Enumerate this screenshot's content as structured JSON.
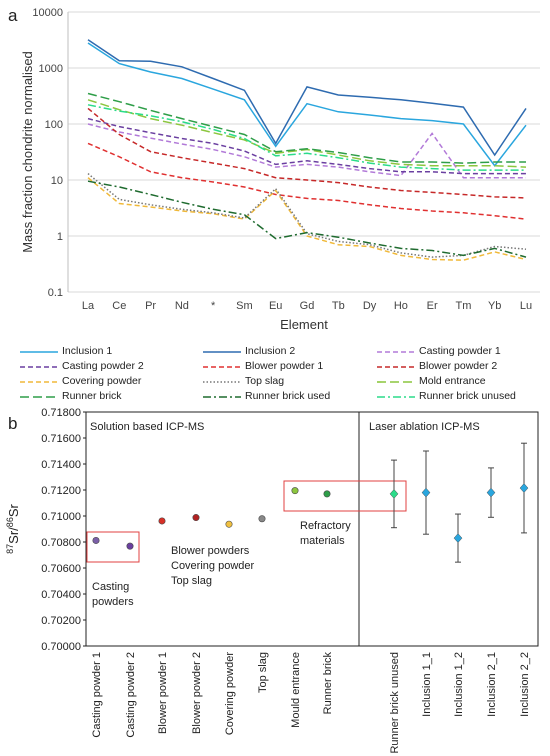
{
  "panels": {
    "a": "a",
    "b": "b"
  },
  "chart_data": [
    {
      "type": "line",
      "ylabel": "Mass fraction chondrite normalised",
      "xlabel": "Element",
      "yscale": "log",
      "ylim": [
        0.1,
        10000
      ],
      "yticks": [
        "0.1",
        "1",
        "10",
        "100",
        "1000",
        "10000"
      ],
      "categories": [
        "La",
        "Ce",
        "Pr",
        "Nd",
        "*",
        "Sm",
        "Eu",
        "Gd",
        "Tb",
        "Dy",
        "Ho",
        "Er",
        "Tm",
        "Yb",
        "Lu"
      ],
      "grid": true,
      "legend": "below",
      "series": [
        {
          "name": "Inclusion 1",
          "color": "#2aa6de",
          "dash": "solid",
          "values": [
            2800,
            1200,
            850,
            650,
            420,
            270,
            40,
            230,
            165,
            145,
            125,
            115,
            100,
            18,
            95
          ]
        },
        {
          "name": "Inclusion 2",
          "color": "#2e6bb0",
          "dash": "solid",
          "values": [
            3200,
            1350,
            1320,
            1050,
            650,
            400,
            45,
            460,
            330,
            300,
            270,
            235,
            200,
            28,
            190
          ]
        },
        {
          "name": "Casting powder 1",
          "color": "#b27ad8",
          "dash": "dash",
          "values": [
            100,
            72,
            56,
            44,
            35,
            26,
            17,
            19,
            17,
            14,
            12,
            68,
            11,
            11,
            11
          ]
        },
        {
          "name": "Casting powder 2",
          "color": "#6a3fa0",
          "dash": "dash",
          "values": [
            125,
            90,
            70,
            55,
            45,
            33,
            19,
            22,
            19,
            16,
            14,
            14,
            13,
            13,
            13
          ]
        },
        {
          "name": "Blower powder 1",
          "color": "#e03030",
          "dash": "dash",
          "values": [
            45,
            26,
            14,
            11,
            9.2,
            7.5,
            5.5,
            4.7,
            4.3,
            3.6,
            3.1,
            2.8,
            2.6,
            2.3,
            2.0
          ]
        },
        {
          "name": "Blower powder 2",
          "color": "#c62828",
          "dash": "dash",
          "values": [
            190,
            65,
            32,
            25,
            20,
            16,
            11,
            10,
            9,
            7.5,
            6.5,
            6,
            5.5,
            5,
            4.8
          ]
        },
        {
          "name": "Covering powder",
          "color": "#f0b93a",
          "dash": "dash",
          "values": [
            11,
            3.8,
            3.3,
            2.8,
            2.5,
            2.0,
            6.5,
            1.0,
            0.7,
            0.65,
            0.45,
            0.38,
            0.37,
            0.52,
            0.38
          ]
        },
        {
          "name": "Top slag",
          "color": "#777777",
          "dash": "dot",
          "values": [
            13,
            4.5,
            3.6,
            3.0,
            2.6,
            2.1,
            7.0,
            1.1,
            0.8,
            0.7,
            0.5,
            0.42,
            0.45,
            0.65,
            0.58
          ]
        },
        {
          "name": "Mold entrance",
          "color": "#8cc63f",
          "dash": "dashlong",
          "values": [
            270,
            180,
            125,
            95,
            70,
            52,
            30,
            35,
            28,
            22,
            19,
            18,
            18,
            18,
            17
          ]
        },
        {
          "name": "Runner brick",
          "color": "#2e9e48",
          "dash": "dashlong",
          "values": [
            350,
            250,
            175,
            125,
            90,
            65,
            32,
            36,
            31,
            25,
            21,
            21,
            20,
            21,
            21
          ]
        },
        {
          "name": "Runner brick used",
          "color": "#1f6b2f",
          "dash": "dashdot",
          "values": [
            9.5,
            7.5,
            5.5,
            4.0,
            3.0,
            2.4,
            0.9,
            1.15,
            0.95,
            0.75,
            0.6,
            0.55,
            0.45,
            0.6,
            0.42
          ]
        },
        {
          "name": "Runner brick unused",
          "color": "#2bdc8a",
          "dash": "dashdot",
          "values": [
            220,
            170,
            140,
            110,
            80,
            55,
            27,
            30,
            25,
            20,
            17,
            16,
            15,
            15,
            15
          ]
        }
      ]
    },
    {
      "type": "scatter",
      "ylabel_main": "87Sr/86Sr",
      "ylabel_sup1": "87",
      "ylabel_sr1": "Sr/",
      "ylabel_sup2": "86",
      "ylabel_sr2": "Sr",
      "ylim": [
        0.7,
        0.718
      ],
      "yticks": [
        "0.70000",
        "0.70200",
        "0.70400",
        "0.70600",
        "0.70800",
        "0.71000",
        "0.71200",
        "0.71400",
        "0.71600",
        "0.71800"
      ],
      "section_labels": [
        "Solution based ICP-MS",
        "Laser ablation ICP-MS"
      ],
      "annotations": {
        "casting": [
          "Casting",
          "powders"
        ],
        "blower": [
          "Blower powders",
          "Covering powder",
          "Top slag"
        ],
        "refractory": [
          "Refractory",
          "materials"
        ]
      },
      "points": [
        {
          "x": "Casting powder 1",
          "y": 0.70812,
          "err": 8e-05,
          "color": "#7b5fa8"
        },
        {
          "x": "Casting powder 2",
          "y": 0.70768,
          "err": 8e-05,
          "color": "#6a3fa0"
        },
        {
          "x": "Blower powder 1",
          "y": 0.70962,
          "err": 6e-05,
          "color": "#d73027"
        },
        {
          "x": "Blower powder 2",
          "y": 0.70988,
          "err": 6e-05,
          "color": "#b22222"
        },
        {
          "x": "Covering powder",
          "y": 0.70937,
          "err": 6e-05,
          "color": "#f0c040"
        },
        {
          "x": "Top slag",
          "y": 0.70979,
          "err": 6e-05,
          "color": "#888888"
        },
        {
          "x": "Mould entrance",
          "y": 0.71195,
          "err": 8e-05,
          "color": "#8cc63f"
        },
        {
          "x": "Runner brick",
          "y": 0.7117,
          "err": 8e-05,
          "color": "#2e9e48"
        },
        {
          "x": "Runner brick unused",
          "y": 0.7117,
          "err": 0.0026,
          "color": "#2bdc8a"
        },
        {
          "x": "Inclusion 1_1",
          "y": 0.7118,
          "err": 0.0032,
          "color": "#2aa6de"
        },
        {
          "x": "Inclusion 1_2",
          "y": 0.7083,
          "err": 0.00185,
          "color": "#2aa6de"
        },
        {
          "x": "Inclusion 2_1",
          "y": 0.7118,
          "err": 0.0019,
          "color": "#2aa6de"
        },
        {
          "x": "Inclusion 2_2",
          "y": 0.71215,
          "err": 0.00345,
          "color": "#2aa6de"
        }
      ]
    }
  ]
}
